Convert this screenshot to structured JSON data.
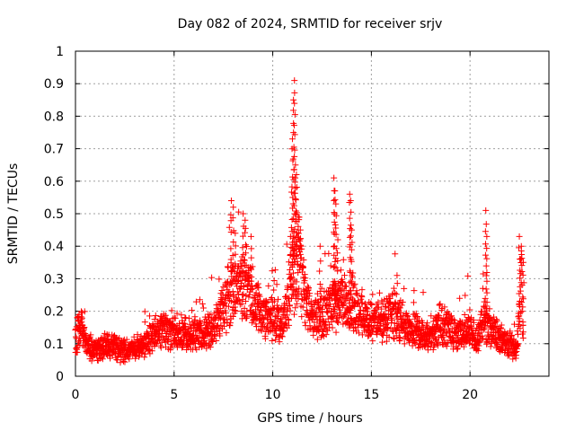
{
  "chart_data": {
    "type": "scatter",
    "title": "Day 082 of 2024, SRMTID for receiver srjv",
    "xlabel": "GPS time / hours",
    "ylabel": "SRMTID / TECUs",
    "xlim": [
      0,
      24
    ],
    "ylim": [
      0,
      1
    ],
    "xticks": [
      0,
      5,
      10,
      15,
      20
    ],
    "xtick_labels": [
      "0",
      "5",
      "10",
      "15",
      "20"
    ],
    "yticks": [
      0,
      0.1,
      0.2,
      0.3,
      0.4,
      0.5,
      0.6,
      0.7,
      0.8,
      0.9,
      1
    ],
    "ytick_labels": [
      "0",
      "0.1",
      "0.2",
      "0.3",
      "0.4",
      "0.5",
      "0.6",
      "0.7",
      "0.8",
      "0.9",
      "1"
    ],
    "grid": true,
    "marker": "+",
    "series": [
      {
        "name": "SRMTID",
        "color": "#ff0000",
        "baseline": [
          [
            0.0,
            0.12
          ],
          [
            0.3,
            0.15
          ],
          [
            0.6,
            0.09
          ],
          [
            1.0,
            0.08
          ],
          [
            1.5,
            0.09
          ],
          [
            2.0,
            0.09
          ],
          [
            2.5,
            0.08
          ],
          [
            3.0,
            0.08
          ],
          [
            3.5,
            0.1
          ],
          [
            4.0,
            0.13
          ],
          [
            4.5,
            0.14
          ],
          [
            5.0,
            0.13
          ],
          [
            5.5,
            0.12
          ],
          [
            6.0,
            0.13
          ],
          [
            6.5,
            0.13
          ],
          [
            7.0,
            0.15
          ],
          [
            7.5,
            0.2
          ],
          [
            8.0,
            0.27
          ],
          [
            8.5,
            0.28
          ],
          [
            9.0,
            0.24
          ],
          [
            9.5,
            0.18
          ],
          [
            10.0,
            0.18
          ],
          [
            10.5,
            0.16
          ],
          [
            11.0,
            0.3
          ],
          [
            11.3,
            0.35
          ],
          [
            11.7,
            0.22
          ],
          [
            12.0,
            0.17
          ],
          [
            12.5,
            0.19
          ],
          [
            13.0,
            0.22
          ],
          [
            13.5,
            0.23
          ],
          [
            14.0,
            0.22
          ],
          [
            14.5,
            0.19
          ],
          [
            15.0,
            0.16
          ],
          [
            15.5,
            0.17
          ],
          [
            16.0,
            0.19
          ],
          [
            16.5,
            0.17
          ],
          [
            17.0,
            0.14
          ],
          [
            17.5,
            0.13
          ],
          [
            18.0,
            0.12
          ],
          [
            18.5,
            0.16
          ],
          [
            19.0,
            0.14
          ],
          [
            19.5,
            0.13
          ],
          [
            20.0,
            0.16
          ],
          [
            20.3,
            0.1
          ],
          [
            20.7,
            0.17
          ],
          [
            21.0,
            0.15
          ],
          [
            21.5,
            0.11
          ],
          [
            22.0,
            0.1
          ],
          [
            22.4,
            0.09
          ],
          [
            22.6,
            0.3
          ],
          [
            22.7,
            0.14
          ]
        ],
        "spikes": [
          [
            7.9,
            0.54
          ],
          [
            8.0,
            0.52
          ],
          [
            8.1,
            0.44
          ],
          [
            8.5,
            0.5
          ],
          [
            8.6,
            0.48
          ],
          [
            8.9,
            0.43
          ],
          [
            10.9,
            0.43
          ],
          [
            11.0,
            0.73
          ],
          [
            11.05,
            0.85
          ],
          [
            11.1,
            0.91
          ],
          [
            11.15,
            0.65
          ],
          [
            11.2,
            0.62
          ],
          [
            11.3,
            0.49
          ],
          [
            11.4,
            0.45
          ],
          [
            12.4,
            0.4
          ],
          [
            13.1,
            0.61
          ],
          [
            13.15,
            0.57
          ],
          [
            13.2,
            0.53
          ],
          [
            13.3,
            0.42
          ],
          [
            13.9,
            0.56
          ],
          [
            13.95,
            0.54
          ],
          [
            14.0,
            0.45
          ],
          [
            16.3,
            0.31
          ],
          [
            20.8,
            0.51
          ],
          [
            20.85,
            0.43
          ],
          [
            22.5,
            0.43
          ],
          [
            22.6,
            0.4
          ],
          [
            22.7,
            0.35
          ]
        ]
      }
    ]
  }
}
